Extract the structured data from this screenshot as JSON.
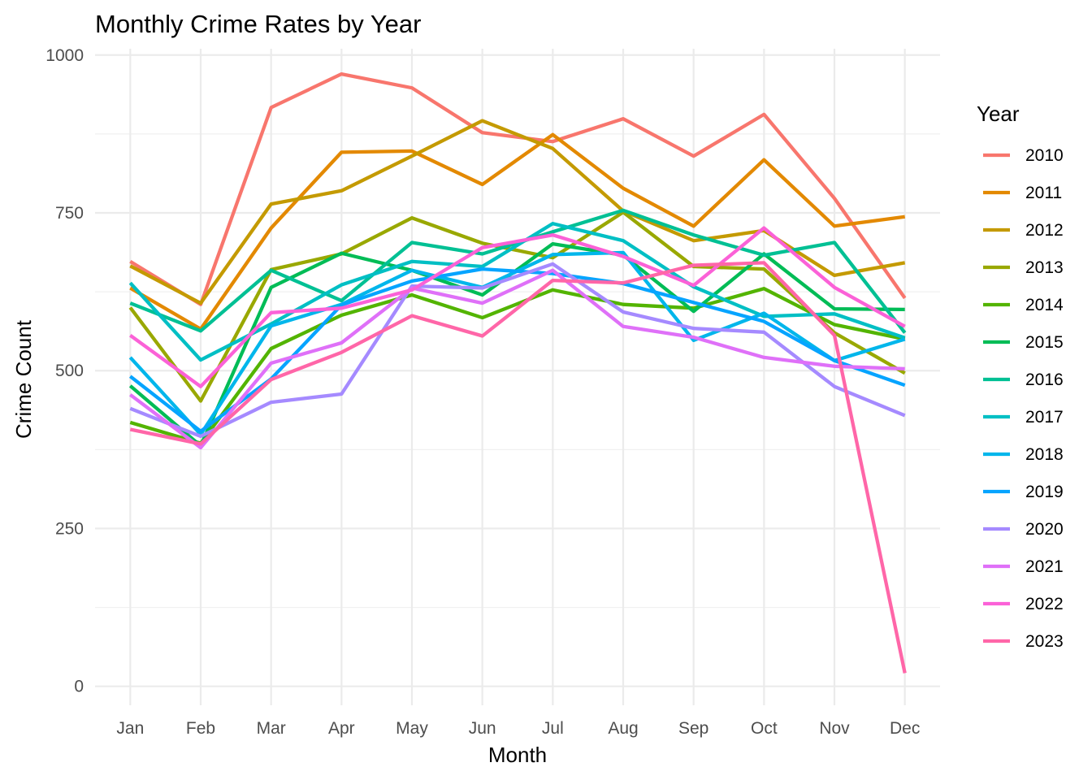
{
  "chart_data": {
    "type": "line",
    "title": "Monthly Crime Rates by Year",
    "xlabel": "Month",
    "ylabel": "Crime Count",
    "categories": [
      "Jan",
      "Feb",
      "Mar",
      "Apr",
      "May",
      "Jun",
      "Jul",
      "Aug",
      "Sep",
      "Oct",
      "Nov",
      "Dec"
    ],
    "ylim": [
      -30,
      1010
    ],
    "yticks": [
      0,
      250,
      500,
      750,
      1000
    ],
    "grid": true,
    "legend_title": "Year",
    "legend_position": "right",
    "series": [
      {
        "name": "2010",
        "color": "#F8766D",
        "values": [
          673,
          605,
          917,
          970,
          948,
          877,
          863,
          899,
          840,
          906,
          773,
          615
        ]
      },
      {
        "name": "2011",
        "color": "#E38900",
        "values": [
          631,
          566,
          726,
          846,
          848,
          795,
          874,
          789,
          729,
          834,
          729,
          744
        ]
      },
      {
        "name": "2012",
        "color": "#C49A00",
        "values": [
          666,
          607,
          764,
          785,
          840,
          896,
          852,
          753,
          706,
          722,
          651,
          671
        ]
      },
      {
        "name": "2013",
        "color": "#99A800",
        "values": [
          600,
          452,
          660,
          685,
          742,
          702,
          679,
          751,
          665,
          661,
          560,
          496
        ]
      },
      {
        "name": "2014",
        "color": "#53B400",
        "values": [
          418,
          385,
          535,
          588,
          620,
          584,
          628,
          605,
          599,
          630,
          573,
          550
        ]
      },
      {
        "name": "2015",
        "color": "#00BC56",
        "values": [
          476,
          381,
          632,
          686,
          659,
          620,
          701,
          683,
          594,
          685,
          598,
          597
        ]
      },
      {
        "name": "2016",
        "color": "#00C094",
        "values": [
          607,
          563,
          659,
          611,
          703,
          685,
          720,
          754,
          715,
          683,
          703,
          560
        ]
      },
      {
        "name": "2017",
        "color": "#00BFC4",
        "values": [
          639,
          517,
          574,
          636,
          673,
          665,
          733,
          706,
          633,
          586,
          590,
          552
        ]
      },
      {
        "name": "2018",
        "color": "#00B6EB",
        "values": [
          521,
          399,
          571,
          605,
          659,
          632,
          684,
          687,
          548,
          591,
          516,
          550
        ]
      },
      {
        "name": "2019",
        "color": "#06A4FF",
        "values": [
          491,
          404,
          487,
          604,
          642,
          661,
          654,
          638,
          608,
          578,
          516,
          477
        ]
      },
      {
        "name": "2020",
        "color": "#A58AFF",
        "values": [
          440,
          396,
          450,
          463,
          634,
          631,
          669,
          593,
          567,
          561,
          475,
          429
        ]
      },
      {
        "name": "2021",
        "color": "#DF70F8",
        "values": [
          462,
          378,
          512,
          544,
          631,
          607,
          659,
          570,
          553,
          521,
          507,
          503
        ]
      },
      {
        "name": "2022",
        "color": "#FB61D7",
        "values": [
          556,
          475,
          592,
          599,
          628,
          695,
          715,
          681,
          635,
          726,
          632,
          570
        ]
      },
      {
        "name": "2023",
        "color": "#FF66A8",
        "values": [
          407,
          384,
          486,
          529,
          587,
          555,
          643,
          639,
          667,
          671,
          556,
          21
        ]
      }
    ]
  }
}
